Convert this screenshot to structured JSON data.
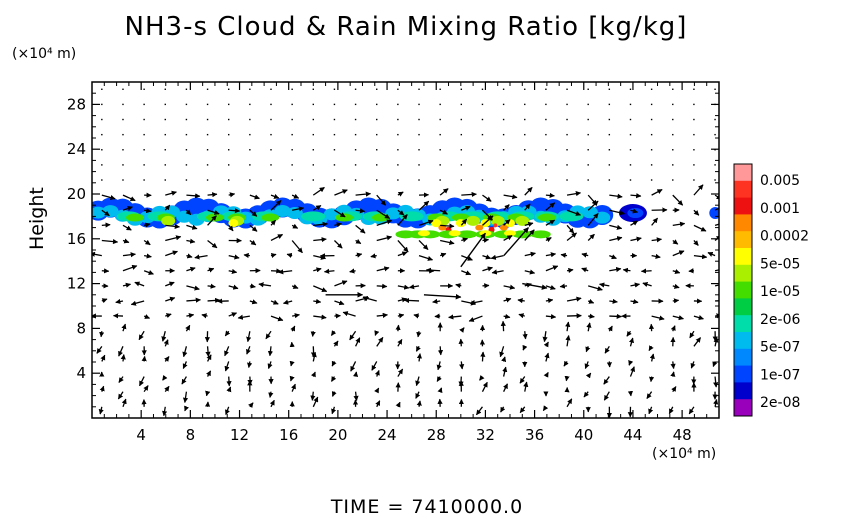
{
  "chart_data": {
    "type": "heatmap",
    "title": "NH3-s Cloud & Rain Mixing Ratio [kg/kg]",
    "ylabel": "Height",
    "xunit": "(×10⁴ m)",
    "yunit": "(×10⁴ m)",
    "footer": "TIME = 7410000.0",
    "xlim": [
      0,
      51
    ],
    "ylim": [
      0,
      30
    ],
    "xticks": [
      4,
      8,
      12,
      16,
      20,
      24,
      28,
      32,
      36,
      40,
      44,
      48
    ],
    "yticks": [
      4,
      8,
      12,
      16,
      20,
      24,
      28
    ],
    "colorbar": {
      "labels": [
        "0.005",
        "0.001",
        "0.0002",
        "5e-05",
        "1e-05",
        "2e-06",
        "5e-07",
        "1e-07",
        "2e-08"
      ],
      "colors": [
        "#ff9999",
        "#ff3322",
        "#ee1111",
        "#ff8800",
        "#ffbb00",
        "#ffff00",
        "#aaee00",
        "#44dd00",
        "#00cc44",
        "#00ddaa",
        "#00bbee",
        "#0088ff",
        "#0044ff",
        "#0000cc",
        "#9900bb"
      ]
    },
    "cloud_layer": {
      "bottom_km_x1e4": 16,
      "top_km_x1e4": 19.5,
      "x_start": 0,
      "x_end": 51,
      "peak_region_x": [
        28,
        35
      ]
    },
    "vector_field": "wind vectors"
  }
}
